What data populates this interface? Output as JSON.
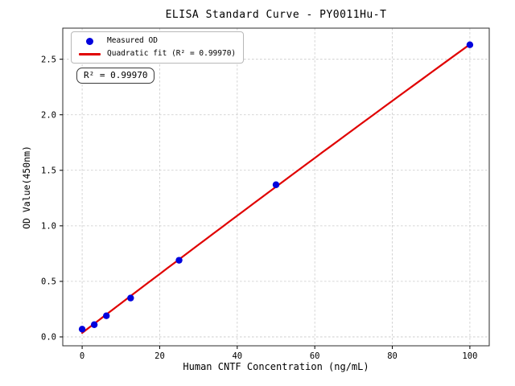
{
  "chart_data": {
    "type": "scatter",
    "title": "ELISA Standard Curve - PY0011Hu-T",
    "xlabel": "Human CNTF Concentration (ng/mL)",
    "ylabel": "OD Value(450nm)",
    "x": [
      0,
      3.125,
      6.25,
      12.5,
      25,
      50,
      100
    ],
    "y": [
      0.07,
      0.11,
      0.19,
      0.35,
      0.69,
      1.37,
      2.63
    ],
    "xticks": [
      0,
      20,
      40,
      60,
      80,
      100
    ],
    "xtick_labels": [
      "0",
      "20",
      "40",
      "60",
      "80",
      "100"
    ],
    "yticks": [
      0,
      0.5,
      1.0,
      1.5,
      2.0,
      2.5
    ],
    "ytick_labels": [
      "0.0",
      "0.5",
      "1.0",
      "1.5",
      "2.0",
      "2.5"
    ],
    "xlim": [
      -5,
      105
    ],
    "ylim": [
      -0.08,
      2.78
    ],
    "grid": true,
    "fit": {
      "type": "quadratic",
      "range": [
        0,
        100
      ],
      "r_squared": 0.9997
    },
    "legend": {
      "position": "upper-left",
      "items": [
        {
          "label": "Measured OD",
          "marker": "dot",
          "color": "#0202dd"
        },
        {
          "label": "Quadratic fit (R² = 0.99970)",
          "marker": "line",
          "color": "#e00000"
        }
      ]
    },
    "annotation": "R² = 0.99970",
    "colors": {
      "points": "#0202dd",
      "fit_line": "#e00000",
      "grid": "#c9c9c9",
      "frame": "#2b2b2b",
      "text": "#000000",
      "background": "#ffffff"
    }
  }
}
